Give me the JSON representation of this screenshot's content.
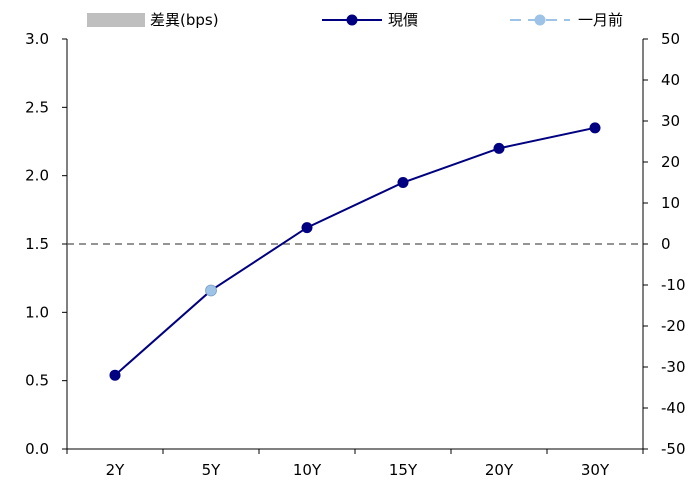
{
  "chart_data": {
    "type": "line",
    "title": "",
    "xlabel": "",
    "ylabel": "",
    "categories": [
      "2Y",
      "5Y",
      "10Y",
      "15Y",
      "20Y",
      "30Y"
    ],
    "y_left": {
      "range": [
        0,
        3.0
      ],
      "ticks": [
        "0.0",
        "0.5",
        "1.0",
        "1.5",
        "2.0",
        "2.5",
        "3.0"
      ]
    },
    "y_right": {
      "range": [
        -50,
        50
      ],
      "ticks": [
        "-50",
        "-40",
        "-30",
        "-20",
        "-10",
        "0",
        "10",
        "20",
        "30",
        "40",
        "50"
      ]
    },
    "series": [
      {
        "name": "差異(bps)",
        "type": "bar",
        "axis": "right",
        "values": [
          0,
          0,
          0,
          0,
          0,
          0
        ],
        "color": "#bfbfbf"
      },
      {
        "name": "現價",
        "type": "line",
        "axis": "left",
        "values": [
          0.54,
          1.16,
          1.62,
          1.95,
          2.2,
          2.35
        ],
        "color": "#000080"
      },
      {
        "name": "一月前",
        "type": "line",
        "axis": "left",
        "values": [
          0.54,
          1.16,
          1.62,
          1.95,
          2.2,
          2.35
        ],
        "color": "#9dc3e6"
      }
    ],
    "reference_line": {
      "axis": "right",
      "value": 0,
      "style": "dashed",
      "color": "#555555"
    },
    "grid": false,
    "legend": "top"
  }
}
